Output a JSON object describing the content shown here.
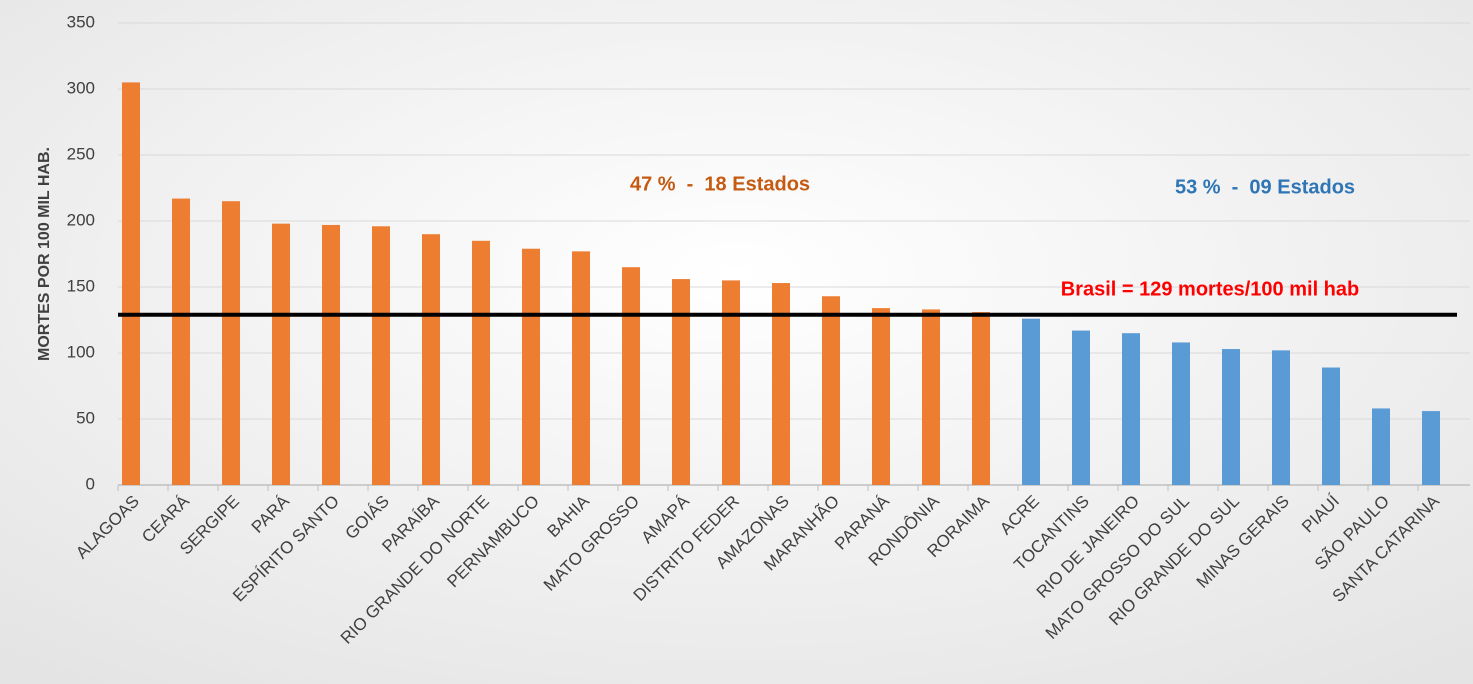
{
  "chart_data": {
    "type": "bar",
    "ylabel": "MORTES POR 100 MIL HAB.",
    "categories": [
      "ALAGOAS",
      "CEARÁ",
      "SERGIPE",
      "PARÁ",
      "ESPÍRITO SANTO",
      "GOIÁS",
      "PARAÍBA",
      "RIO GRANDE DO NORTE",
      "PERNAMBUCO",
      "BAHIA",
      "MATO GROSSO",
      "AMAPÁ",
      "DISTRITO FEDER",
      "AMAZONAS",
      "MARANHÃO",
      "PARANÁ",
      "RONDÔNIA",
      "RORAIMA",
      "ACRE",
      "TOCANTINS",
      "RIO DE JANEIRO",
      "MATO GROSSO DO SUL",
      "RIO GRANDE DO SUL",
      "MINAS GERAIS",
      "PIAUÍ",
      "SÃO PAULO",
      "SANTA CATARINA"
    ],
    "values": [
      305,
      217,
      215,
      198,
      197,
      196,
      190,
      185,
      179,
      177,
      165,
      156,
      155,
      153,
      143,
      134,
      133,
      131,
      126,
      117,
      115,
      108,
      103,
      102,
      89,
      58,
      56
    ],
    "colors": [
      "#ed7d31",
      "#ed7d31",
      "#ed7d31",
      "#ed7d31",
      "#ed7d31",
      "#ed7d31",
      "#ed7d31",
      "#ed7d31",
      "#ed7d31",
      "#ed7d31",
      "#ed7d31",
      "#ed7d31",
      "#ed7d31",
      "#ed7d31",
      "#ed7d31",
      "#ed7d31",
      "#ed7d31",
      "#ed7d31",
      "#5b9bd5",
      "#5b9bd5",
      "#5b9bd5",
      "#5b9bd5",
      "#5b9bd5",
      "#5b9bd5",
      "#5b9bd5",
      "#5b9bd5",
      "#5b9bd5"
    ],
    "ylim": [
      0,
      350
    ],
    "yticks": [
      0,
      50,
      100,
      150,
      200,
      250,
      300,
      350
    ],
    "grid": true,
    "reference_line": {
      "value": 129,
      "label": "Brasil = 129 mortes/100 mil hab",
      "color": "#000000",
      "label_color": "#ff0000"
    },
    "annotations": [
      {
        "text": "47 %  -  18 Estados",
        "color": "#c55a11"
      },
      {
        "text": "53 %  -  09 Estados",
        "color": "#2e75b6"
      }
    ]
  }
}
